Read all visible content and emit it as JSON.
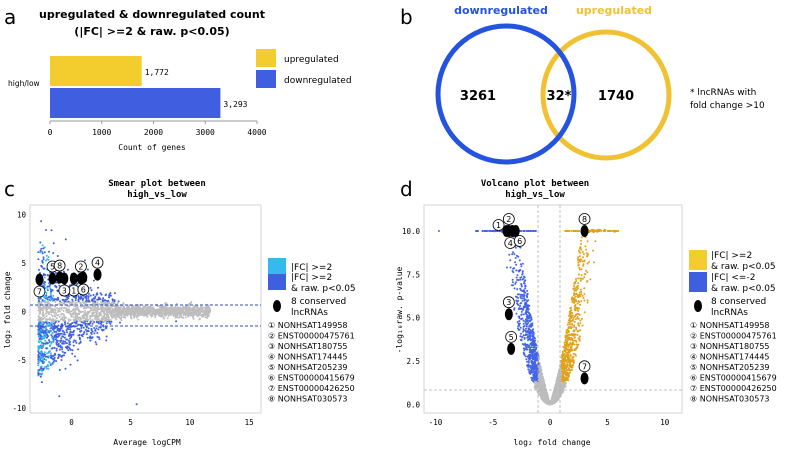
{
  "panels": {
    "a": "a",
    "b": "b",
    "c": "c",
    "d": "d"
  },
  "colors": {
    "up": "#F3CC2D",
    "down": "#3F5FE0",
    "light_up": "#36B9EE",
    "grey": "#bdbdbd",
    "volcano_up": "#E0A21C",
    "volcano_down": "#4464E6",
    "venn_down": "#2453E0",
    "venn_up": "#F0C233"
  },
  "chart_data": [
    {
      "type": "bar",
      "title": "upregulated & downregulated count",
      "subtitle": "(|FC| >=2 & raw. p<0.05)",
      "categories": [
        "high/low"
      ],
      "series": [
        {
          "name": "upregulated",
          "values": [
            1772
          ]
        },
        {
          "name": "downregulated",
          "values": [
            3293
          ]
        }
      ],
      "value_labels": [
        "1,772",
        "3,293"
      ],
      "xlabel": "Count of genes",
      "xlim": [
        0,
        4000
      ],
      "xticks": [
        "0",
        "1000",
        "2000",
        "3000",
        "4000"
      ],
      "legend": "right"
    },
    {
      "type": "venn",
      "sets": [
        {
          "name": "downregulated",
          "only": "3261"
        },
        {
          "name": "upregulated",
          "only": "1740"
        }
      ],
      "intersection": "32*",
      "note": "* lncRNAs with fold change >10"
    },
    {
      "type": "scatter",
      "title": "Smear plot between",
      "title2": "high_vs_low",
      "xlabel": "Average logCPM",
      "ylabel": "log₂ fold change",
      "xlim": [
        -3.5,
        16
      ],
      "ylim": [
        -10.5,
        11
      ],
      "xticks": [
        "0",
        "5",
        "10",
        "15"
      ],
      "yticks": [
        "-10",
        "-5",
        "0",
        "5",
        "10"
      ],
      "thresholds": [
        1,
        -1
      ],
      "grid": false,
      "legend": "right",
      "legend_items": [
        "|FC| >=2",
        "|FC| >=2",
        "& raw. p<0.05",
        "8 conserved",
        "lncRNAs"
      ],
      "highlight_points": [
        {
          "id": "1",
          "x": 0.2,
          "y": 3.4
        },
        {
          "id": "2",
          "x": 0.8,
          "y": 3.4
        },
        {
          "id": "3",
          "x": -0.6,
          "y": 3.4
        },
        {
          "id": "4",
          "x": 2.2,
          "y": 3.8
        },
        {
          "id": "5",
          "x": -1.6,
          "y": 3.4
        },
        {
          "id": "6",
          "x": 1.0,
          "y": 3.5
        },
        {
          "id": "7",
          "x": -2.7,
          "y": 3.3
        },
        {
          "id": "8",
          "x": -1.0,
          "y": 3.5
        }
      ],
      "genes": [
        "① NONHSAT149958",
        "② ENST00000475761",
        "③ NONHSAT180755",
        "④ NONHSAT174445",
        "⑤ NONHSAT205239",
        "⑥ ENST00000415679",
        "⑦ ENST00000426250",
        "⑧ NONHSAT030573"
      ]
    },
    {
      "type": "scatter",
      "title": "Volcano plot between",
      "title2": "high_vs_low",
      "xlabel": "log₂ fold change",
      "ylabel": "-log₁₀raw. p-value",
      "xlim": [
        -11,
        11.5
      ],
      "ylim": [
        -0.5,
        11.5
      ],
      "xticks": [
        "-10",
        "-5",
        "0",
        "5",
        "10"
      ],
      "yticks": [
        "0.0",
        "2.5",
        "5.0",
        "7.5",
        "10.0"
      ],
      "thresholds_x": [
        -1,
        1
      ],
      "threshold_y": 1.3,
      "legend": "right",
      "legend_items": [
        "|FC| >=2",
        "& raw. p<0.05",
        "|FC| <=-2",
        "& raw. p<0.05",
        "8 conserved",
        "lncRNAs"
      ],
      "highlight_points": [
        {
          "id": "1",
          "x": -3.8,
          "y": 10.0
        },
        {
          "id": "2",
          "x": -3.6,
          "y": 10.0
        },
        {
          "id": "3",
          "x": -3.6,
          "y": 5.2
        },
        {
          "id": "4",
          "x": -3.3,
          "y": 10.0
        },
        {
          "id": "5",
          "x": -3.4,
          "y": 3.2
        },
        {
          "id": "6",
          "x": -3.0,
          "y": 10.0
        },
        {
          "id": "7",
          "x": 3.0,
          "y": 1.5
        },
        {
          "id": "8",
          "x": 3.0,
          "y": 10.0
        }
      ],
      "genes": [
        "① NONHSAT149958",
        "② ENST00000475761",
        "③ NONHSAT180755",
        "④ NONHSAT174445",
        "⑤ NONHSAT205239",
        "⑥ ENST00000415679",
        "⑦ ENST00000426250",
        "⑧ NONHSAT030573"
      ]
    }
  ]
}
